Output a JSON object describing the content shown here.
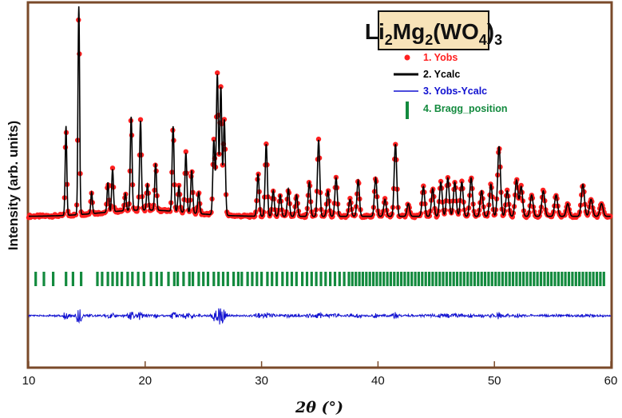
{
  "chart_data": {
    "type": "line",
    "title": "Li2Mg2(WO4)3",
    "title_parts": [
      "Li",
      "2",
      "Mg",
      "2",
      "(WO",
      "4",
      ")",
      "3"
    ],
    "xlabel": "2θ (°)",
    "ylabel": "Intensity (arb. units)",
    "xlim": [
      10,
      60
    ],
    "xticks": [
      "10",
      "20",
      "30",
      "40",
      "50",
      "60"
    ],
    "grid": false,
    "legend_position": "top-right",
    "colors": {
      "frame": "#7a4a2a",
      "yobs": "#ff2020",
      "ycalc": "#000000",
      "diff": "#1010d0",
      "bragg": "#138a3e",
      "title_box_fill": "#f7e3b9"
    },
    "series": [
      {
        "name": "1. Yobs",
        "style": "markers",
        "color": "#ff2020"
      },
      {
        "name": "2. Ycalc",
        "style": "line",
        "color": "#000000"
      },
      {
        "name": "3. Yobs-Ycalc",
        "style": "line",
        "color": "#1010d0"
      },
      {
        "name": "4. Bragg_position",
        "style": "ticks",
        "color": "#138a3e"
      }
    ],
    "baseline": 0.08,
    "peaks": [
      {
        "x": 13.2,
        "h": 0.42
      },
      {
        "x": 14.3,
        "h": 0.98
      },
      {
        "x": 15.4,
        "h": 0.1
      },
      {
        "x": 16.8,
        "h": 0.14
      },
      {
        "x": 17.2,
        "h": 0.2
      },
      {
        "x": 18.3,
        "h": 0.08
      },
      {
        "x": 18.8,
        "h": 0.44
      },
      {
        "x": 19.6,
        "h": 0.42
      },
      {
        "x": 20.2,
        "h": 0.12
      },
      {
        "x": 20.9,
        "h": 0.22
      },
      {
        "x": 22.4,
        "h": 0.4
      },
      {
        "x": 22.9,
        "h": 0.12
      },
      {
        "x": 23.5,
        "h": 0.28
      },
      {
        "x": 24.0,
        "h": 0.2
      },
      {
        "x": 24.6,
        "h": 0.1
      },
      {
        "x": 25.9,
        "h": 0.35
      },
      {
        "x": 26.2,
        "h": 0.66
      },
      {
        "x": 26.5,
        "h": 0.6
      },
      {
        "x": 26.8,
        "h": 0.45
      },
      {
        "x": 29.7,
        "h": 0.2
      },
      {
        "x": 30.4,
        "h": 0.34
      },
      {
        "x": 31.0,
        "h": 0.12
      },
      {
        "x": 31.6,
        "h": 0.1
      },
      {
        "x": 32.3,
        "h": 0.13
      },
      {
        "x": 33.0,
        "h": 0.1
      },
      {
        "x": 34.1,
        "h": 0.16
      },
      {
        "x": 34.9,
        "h": 0.36
      },
      {
        "x": 35.7,
        "h": 0.12
      },
      {
        "x": 36.4,
        "h": 0.18
      },
      {
        "x": 37.6,
        "h": 0.08
      },
      {
        "x": 38.3,
        "h": 0.17
      },
      {
        "x": 39.8,
        "h": 0.18
      },
      {
        "x": 40.6,
        "h": 0.08
      },
      {
        "x": 41.5,
        "h": 0.34
      },
      {
        "x": 42.6,
        "h": 0.06
      },
      {
        "x": 43.9,
        "h": 0.14
      },
      {
        "x": 44.7,
        "h": 0.13
      },
      {
        "x": 45.4,
        "h": 0.16
      },
      {
        "x": 46.0,
        "h": 0.18
      },
      {
        "x": 46.6,
        "h": 0.16
      },
      {
        "x": 47.2,
        "h": 0.16
      },
      {
        "x": 48.0,
        "h": 0.18
      },
      {
        "x": 48.9,
        "h": 0.12
      },
      {
        "x": 49.7,
        "h": 0.15
      },
      {
        "x": 50.4,
        "h": 0.33
      },
      {
        "x": 51.1,
        "h": 0.12
      },
      {
        "x": 51.9,
        "h": 0.17
      },
      {
        "x": 52.3,
        "h": 0.14
      },
      {
        "x": 53.2,
        "h": 0.1
      },
      {
        "x": 54.2,
        "h": 0.12
      },
      {
        "x": 55.3,
        "h": 0.1
      },
      {
        "x": 56.3,
        "h": 0.06
      },
      {
        "x": 57.6,
        "h": 0.15
      },
      {
        "x": 58.3,
        "h": 0.08
      },
      {
        "x": 59.2,
        "h": 0.06
      }
    ],
    "bragg_positions": [
      10.6,
      11.3,
      12.1,
      13.2,
      13.8,
      14.5,
      15.9,
      16.3,
      16.8,
      17.2,
      17.6,
      18.0,
      18.5,
      18.9,
      19.4,
      19.9,
      20.5,
      21.0,
      21.4,
      22.0,
      22.5,
      22.8,
      23.3,
      23.8,
      24.1,
      24.6,
      25.0,
      25.4,
      25.9,
      26.3,
      26.7,
      27.1,
      27.6,
      28.0,
      28.3,
      28.8,
      29.2,
      29.6,
      30.0,
      30.5,
      30.9,
      31.3,
      31.8,
      32.2,
      32.6,
      33.0,
      33.5,
      33.9,
      34.3,
      34.7,
      35.1,
      35.5,
      35.9,
      36.3,
      36.7,
      37.1,
      37.5,
      37.8,
      38.1,
      38.4,
      38.7,
      39.0,
      39.3,
      39.6,
      39.9,
      40.2,
      40.5,
      40.8,
      41.1,
      41.4,
      41.7,
      42.0,
      42.3,
      42.6,
      42.9,
      43.2,
      43.5,
      43.8,
      44.1,
      44.4,
      44.7,
      45.0,
      45.3,
      45.6,
      45.9,
      46.2,
      46.5,
      46.8,
      47.1,
      47.4,
      47.7,
      48.0,
      48.3,
      48.6,
      48.9,
      49.2,
      49.5,
      49.8,
      50.1,
      50.4,
      50.7,
      51.0,
      51.3,
      51.6,
      51.9,
      52.2,
      52.5,
      52.8,
      53.1,
      53.4,
      53.7,
      54.0,
      54.3,
      54.6,
      54.9,
      55.2,
      55.5,
      55.8,
      56.1,
      56.4,
      56.7,
      57.0,
      57.3,
      57.6,
      57.9,
      58.2,
      58.5,
      58.8,
      59.1,
      59.4
    ]
  }
}
